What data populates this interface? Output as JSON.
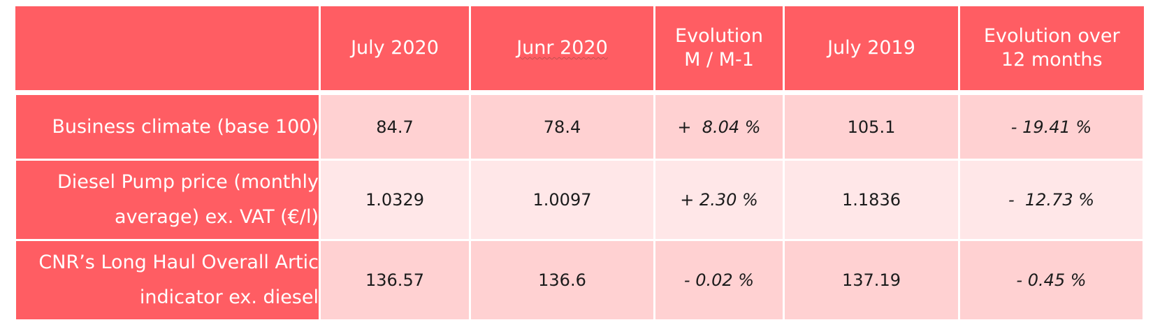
{
  "table": {
    "headers": [
      "",
      "July 2020",
      "Junr 2020",
      [
        "Evolution",
        "M / M-1"
      ],
      "July 2019",
      [
        "Evolution over",
        "12 months"
      ]
    ],
    "rows": [
      {
        "label": [
          "Business climate (base 100)"
        ],
        "values": [
          "84.7",
          "78.4",
          "+  8.04 %",
          "105.1",
          "- 19.41 %"
        ]
      },
      {
        "label": [
          "Diesel Pump price (monthly",
          "average) ex. VAT (€/l)"
        ],
        "values": [
          "1.0329",
          "1.0097",
          "+ 2.30 %",
          "1.1836",
          "-  12.73 %"
        ]
      },
      {
        "label": [
          "CNR’s Long Haul Overall Artic",
          "indicator ex. diesel"
        ],
        "values": [
          "136.57",
          "136.6",
          "- 0.02 %",
          "137.19",
          "- 0.45 %"
        ]
      }
    ]
  },
  "colors": {
    "header_bg": "#ff5d63",
    "row_dark": "#ffd1d2",
    "row_light": "#ffe7e8",
    "text_light": "#ffffff",
    "text_dark": "#1b1b1b"
  }
}
